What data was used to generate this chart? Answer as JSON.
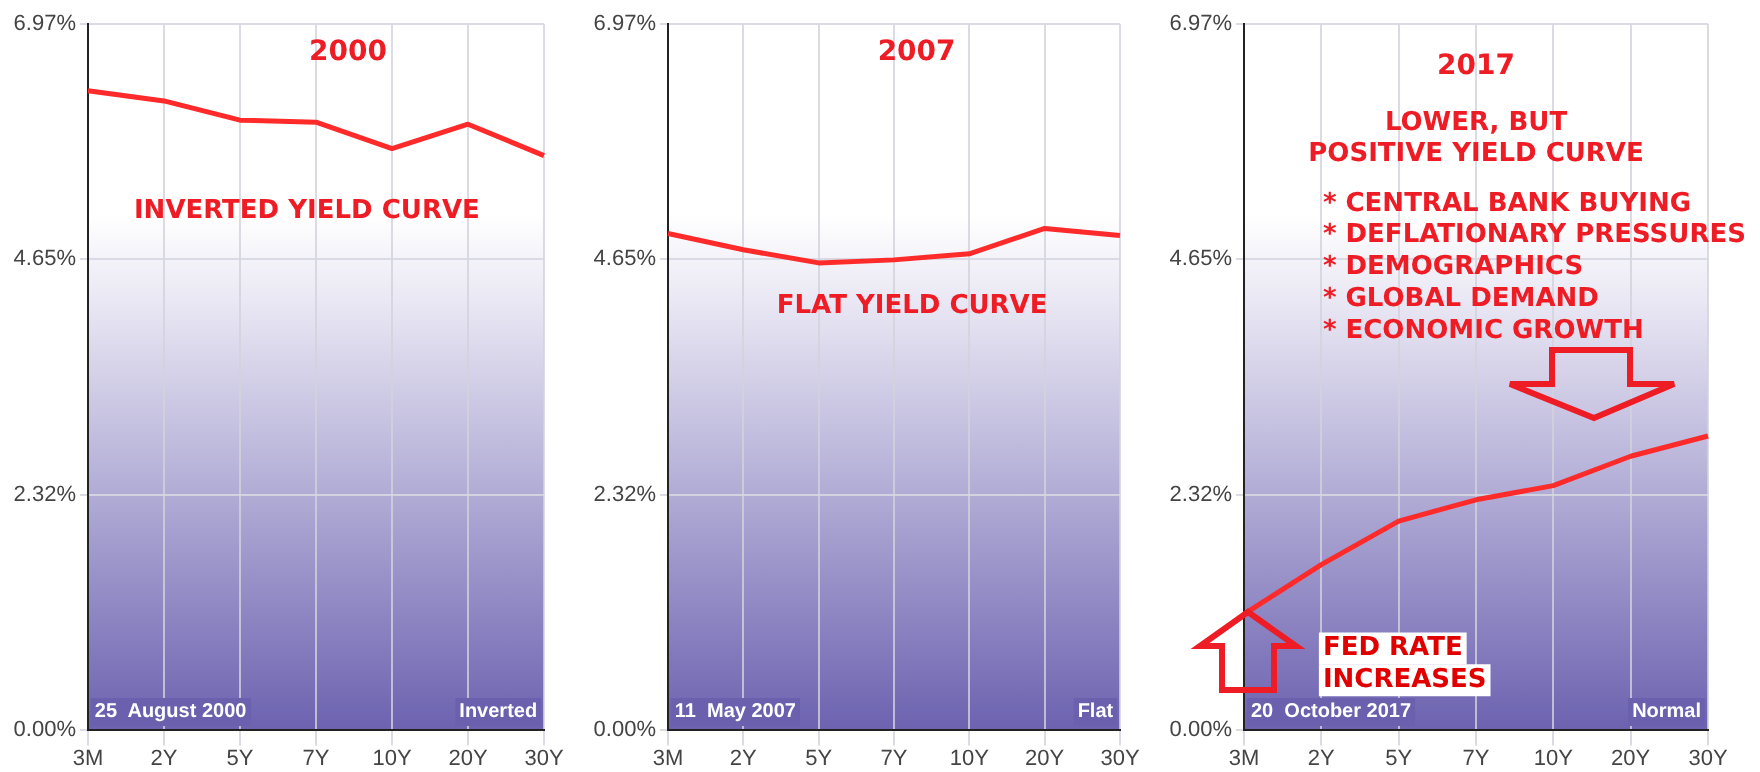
{
  "chart_data": [
    {
      "type": "line",
      "title": "2000",
      "categories": [
        "3M",
        "2Y",
        "5Y",
        "7Y",
        "10Y",
        "20Y",
        "30Y"
      ],
      "series": [
        {
          "color": "#ff2a2a",
          "values": [
            6.31,
            6.21,
            6.02,
            6.0,
            5.74,
            5.98,
            5.67
          ]
        }
      ],
      "ylim": [
        0,
        6.97
      ],
      "yticks": [
        {
          "value": 0,
          "label": "0.00%"
        },
        {
          "value": 2.32,
          "label": "2.32%"
        },
        {
          "value": 4.65,
          "label": "4.65%"
        },
        {
          "value": 6.97,
          "label": "6.97%"
        }
      ],
      "grid": true,
      "marker": "none",
      "annotations": [
        "INVERTED YIELD CURVE",
        "25  August 2000",
        "Inverted"
      ]
    },
    {
      "type": "line",
      "title": "2007",
      "categories": [
        "3M",
        "2Y",
        "5Y",
        "7Y",
        "10Y",
        "20Y",
        "30Y"
      ],
      "series": [
        {
          "color": "#ff2a2a",
          "values": [
            4.9,
            4.74,
            4.61,
            4.64,
            4.7,
            4.95,
            4.88
          ]
        }
      ],
      "ylim": [
        0,
        6.97
      ],
      "yticks": [
        {
          "value": 0,
          "label": "0.00%"
        },
        {
          "value": 2.32,
          "label": "2.32%"
        },
        {
          "value": 4.65,
          "label": "4.65%"
        },
        {
          "value": 6.97,
          "label": "6.97%"
        }
      ],
      "grid": true,
      "marker": "none",
      "annotations": [
        "FLAT YIELD CURVE",
        "11  May 2007",
        "Flat"
      ]
    },
    {
      "type": "line",
      "title": "2017",
      "categories": [
        "3M",
        "2Y",
        "5Y",
        "7Y",
        "10Y",
        "20Y",
        "30Y"
      ],
      "series": [
        {
          "color": "#ff2a2a",
          "values": [
            1.14,
            1.63,
            2.06,
            2.27,
            2.41,
            2.7,
            2.9
          ]
        }
      ],
      "ylim": [
        0,
        6.97
      ],
      "yticks": [
        {
          "value": 0,
          "label": "0.00%"
        },
        {
          "value": 2.32,
          "label": "2.32%"
        },
        {
          "value": 4.65,
          "label": "4.65%"
        },
        {
          "value": 6.97,
          "label": "6.97%"
        }
      ],
      "grid": true,
      "marker": "none",
      "annotations": [
        "LOWER, BUT",
        "POSITIVE YIELD CURVE",
        "* CENTRAL BANK BUYING",
        "* DEFLATIONARY PRESSURES",
        "* DEMOGRAPHICS",
        "* GLOBAL DEMAND",
        "* ECONOMIC GROWTH",
        "FED RATE",
        "INCREASES",
        "20  October 2017",
        "Normal"
      ]
    }
  ]
}
